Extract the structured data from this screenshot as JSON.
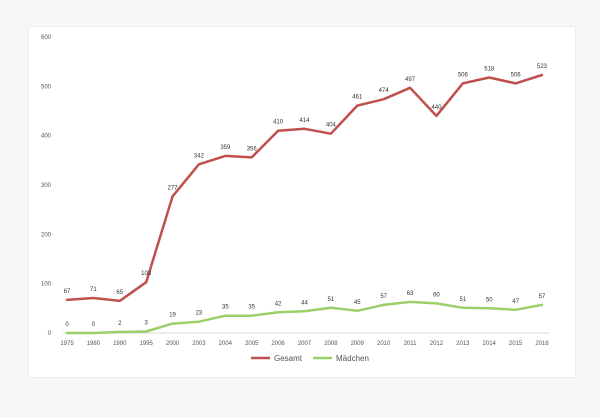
{
  "chart_data": {
    "type": "line",
    "title": "",
    "xlabel": "",
    "ylabel": "",
    "categories": [
      "1975",
      "1980",
      "1990",
      "1995",
      "2000",
      "2003",
      "2004",
      "2005",
      "2006",
      "2007",
      "2008",
      "2009",
      "2010",
      "2011",
      "2012",
      "2013",
      "2014",
      "2015",
      "2016"
    ],
    "ylim": [
      0,
      600
    ],
    "yticks": [
      0,
      100,
      200,
      300,
      400,
      500,
      600
    ],
    "grid": false,
    "legend_position": "bottom",
    "series": [
      {
        "name": "Gesamt",
        "color": "#c0504d",
        "values": [
          67,
          71,
          65,
          103,
          277,
          342,
          359,
          356,
          410,
          414,
          404,
          461,
          474,
          497,
          440,
          506,
          518,
          506,
          523
        ],
        "labels": [
          "67",
          "71",
          "65",
          "103",
          "277",
          "342",
          "359",
          "356",
          "410",
          "414",
          "404",
          "461",
          "474",
          "497",
          "440",
          "506",
          "518",
          "506",
          "523"
        ]
      },
      {
        "name": "Mädchen",
        "color": "#9bcf68",
        "values": [
          0,
          0,
          2,
          3,
          19,
          23,
          35,
          35,
          42,
          44,
          51,
          45,
          57,
          63,
          60,
          51,
          50,
          47,
          57
        ],
        "labels": [
          "0",
          "0",
          "2",
          "3",
          "19",
          "23",
          "35",
          "35",
          "42",
          "44",
          "51",
          "45",
          "57",
          "63",
          "60",
          "51",
          "50",
          "47",
          "57"
        ]
      }
    ]
  }
}
